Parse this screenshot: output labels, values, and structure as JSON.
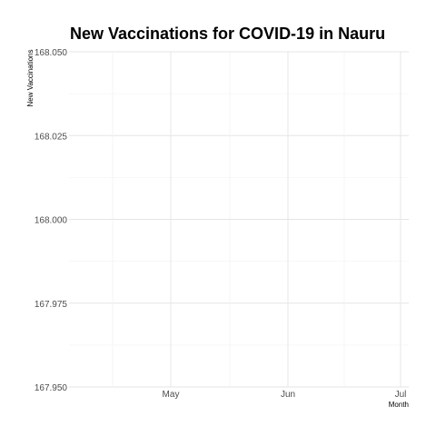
{
  "chart_data": {
    "type": "line",
    "title": "New Vaccinations for COVID-19 in Nauru",
    "xlabel": "Month",
    "ylabel": "New Vaccinations",
    "x_ticks": [
      "May",
      "Jun",
      "Jul"
    ],
    "y_ticks": [
      "168.050",
      "168.025",
      "168.000",
      "167.975",
      "167.950"
    ],
    "ylim": [
      167.95,
      168.05
    ],
    "grid": true,
    "series": [
      {
        "values": []
      }
    ]
  }
}
